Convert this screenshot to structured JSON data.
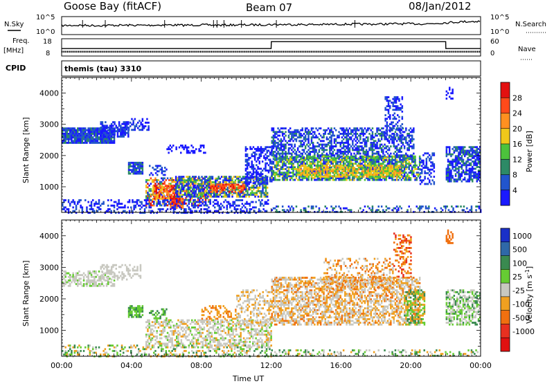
{
  "header": {
    "station": "Goose Bay (fitACF)",
    "beam": "Beam 07",
    "date": "08/Jan/2012"
  },
  "strip1": {
    "left_label": "N.Sky",
    "right_label": "N.Search",
    "left_top": "10^5",
    "left_bottom": "10^0",
    "right_top": "10^5",
    "right_bottom": "10^0"
  },
  "strip2": {
    "left_label_1": "Freq.",
    "left_label_2": "[MHz]",
    "right_label": "Nave",
    "left_top": "18",
    "left_bottom": "8",
    "right_top": "60",
    "right_bottom": "0"
  },
  "cpid": {
    "label": "CPID",
    "value": "themis (tau) 3310"
  },
  "panels": {
    "ylabel": "Slant Range [km]",
    "xlabel": "Time UT"
  },
  "chart_data": [
    {
      "type": "line",
      "name": "noise-strip",
      "x": [
        0,
        1,
        2,
        3,
        4,
        5,
        6,
        7,
        8,
        9,
        10,
        11,
        12,
        13,
        14,
        15,
        16,
        17,
        18,
        19,
        20,
        21,
        22,
        23,
        24
      ],
      "series": [
        {
          "values": [
            2.5,
            2.6,
            2.5,
            2.6,
            2.6,
            2.6,
            2.7,
            2.6,
            2.7,
            2.6,
            2.7,
            2.7,
            2.8,
            2.8,
            2.8,
            2.8,
            2.9,
            2.9,
            2.9,
            3.0,
            3.0,
            3.0,
            3.3,
            3.6,
            3.7
          ]
        }
      ],
      "ylim": [
        0,
        5
      ]
    },
    {
      "type": "line",
      "name": "frequency-nave-strip",
      "x": [
        0,
        12,
        12.01,
        22,
        22.01,
        24
      ],
      "series": [
        {
          "values": [
            10.5,
            10.5,
            10.5,
            10.5,
            10.5,
            10.5
          ]
        },
        {
          "values": [
            26,
            26,
            50,
            50,
            26,
            26
          ]
        }
      ]
    },
    {
      "type": "heatmap",
      "name": "power-panel",
      "xlim": [
        0,
        24
      ],
      "ylim": [
        180,
        4500
      ],
      "xticks": [
        "00:00",
        "04:00",
        "08:00",
        "12:00",
        "16:00",
        "20:00",
        "00:00"
      ],
      "yticks": [
        "1000",
        "2000",
        "3000",
        "4000"
      ],
      "colorbar": {
        "label": "Power [dB]",
        "ticks": [
          "4",
          "8",
          "12",
          "16",
          "20",
          "24",
          "28"
        ],
        "colors": [
          "#1a1aff",
          "#2255cc",
          "#2d8a66",
          "#4cc23c",
          "#f0c81a",
          "#ff9020",
          "#ff4a1a",
          "#e31010"
        ]
      }
    },
    {
      "type": "heatmap",
      "name": "velocity-panel",
      "xlim": [
        0,
        24
      ],
      "ylim": [
        180,
        4500
      ],
      "xticks": [
        "00:00",
        "04:00",
        "08:00",
        "12:00",
        "16:00",
        "20:00",
        "00:00"
      ],
      "yticks": [
        "1000",
        "2000",
        "3000",
        "4000"
      ],
      "colorbar": {
        "label": "Velocity [m s^-1]",
        "ticks": [
          "1000",
          "500",
          "100",
          "25",
          "-25",
          "-100",
          "-500",
          "-1000"
        ],
        "colors": [
          "#1a30c8",
          "#2f68a8",
          "#3a8a50",
          "#66cc33",
          "#c8c8c0",
          "#f0a020",
          "#f07010",
          "#e83020",
          "#e01010"
        ]
      }
    }
  ]
}
